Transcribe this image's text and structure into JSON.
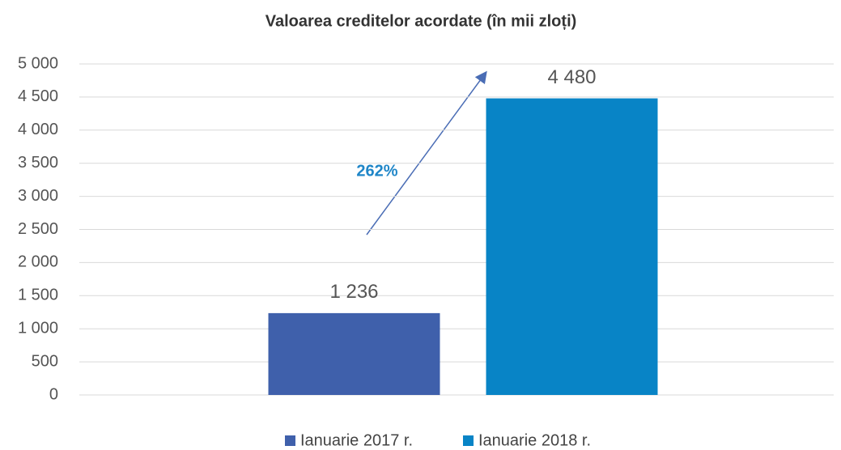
{
  "chart_data": {
    "type": "bar",
    "title": "Valoarea creditelor acordate (în mii zloți)",
    "categories": [
      null
    ],
    "series": [
      {
        "name": "Ianuarie 2017 r.",
        "color": "#3f60ab",
        "values": [
          1236
        ],
        "value_labels": [
          "1 236"
        ]
      },
      {
        "name": "Ianuarie 2018 r.",
        "color": "#0884c6",
        "values": [
          4480
        ],
        "value_labels": [
          "4 480"
        ]
      }
    ],
    "annotations": [
      {
        "text": "262%"
      }
    ],
    "ylim": [
      0,
      5000
    ],
    "yticks": [
      {
        "value": 0,
        "label": "0"
      },
      {
        "value": 500,
        "label": "500"
      },
      {
        "value": 1000,
        "label": "1 000"
      },
      {
        "value": 1500,
        "label": "1 500"
      },
      {
        "value": 2000,
        "label": "2 000"
      },
      {
        "value": 2500,
        "label": "2 500"
      },
      {
        "value": 3000,
        "label": "3 000"
      },
      {
        "value": 3500,
        "label": "3 500"
      },
      {
        "value": 4000,
        "label": "4 000"
      },
      {
        "value": 4500,
        "label": "4 500"
      },
      {
        "value": 5000,
        "label": "5 000"
      }
    ],
    "grid": true,
    "legend": "bottom"
  }
}
